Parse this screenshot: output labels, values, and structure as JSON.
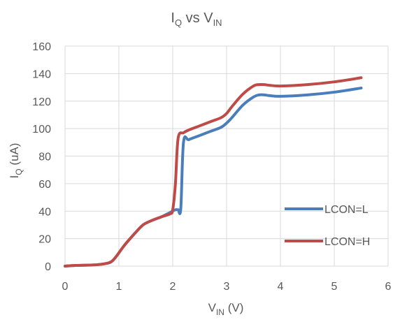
{
  "chart_data": {
    "type": "line",
    "title": {
      "main": "I",
      "sub1": "Q",
      "mid": " vs V",
      "sub2": "IN"
    },
    "xlabel": {
      "main": "V",
      "sub": "IN",
      "tail": " (V)"
    },
    "ylabel": {
      "main": "I",
      "sub": "Q",
      "tail": " (uA)"
    },
    "xlim": [
      0,
      6
    ],
    "ylim": [
      0,
      160
    ],
    "xticks": [
      0,
      1,
      2,
      3,
      4,
      5,
      6
    ],
    "yticks": [
      0,
      20,
      40,
      60,
      80,
      100,
      120,
      140,
      160
    ],
    "grid": true,
    "legend_position": "bottom-right",
    "series": [
      {
        "name": "LCON=L",
        "color": "#4a7ebb",
        "x": [
          0,
          0.2,
          0.5,
          0.7,
          0.85,
          0.95,
          1.1,
          1.3,
          1.45,
          1.6,
          1.8,
          1.95,
          2.05,
          2.1,
          2.15,
          2.2,
          2.3,
          2.5,
          2.7,
          2.9,
          3.0,
          3.1,
          3.3,
          3.5,
          3.6,
          3.7,
          3.8,
          4.0,
          4.5,
          5.0,
          5.5
        ],
        "y": [
          0,
          0.5,
          0.8,
          1.5,
          3,
          7,
          15,
          24,
          30,
          33,
          36,
          39,
          41,
          41,
          42,
          90,
          92,
          95,
          98,
          101,
          104,
          108,
          117,
          123,
          124.5,
          124.5,
          124,
          123.5,
          124.5,
          126.5,
          129.5
        ]
      },
      {
        "name": "LCON=H",
        "color": "#be4b48",
        "x": [
          0,
          0.2,
          0.5,
          0.7,
          0.85,
          0.95,
          1.1,
          1.3,
          1.45,
          1.6,
          1.8,
          1.95,
          2.0,
          2.05,
          2.1,
          2.2,
          2.3,
          2.5,
          2.7,
          2.9,
          3.0,
          3.1,
          3.3,
          3.5,
          3.6,
          3.7,
          3.8,
          4.0,
          4.5,
          5.0,
          5.5
        ],
        "y": [
          0,
          0.5,
          0.8,
          1.5,
          3,
          7,
          15,
          24,
          30,
          33,
          36,
          38,
          41,
          60,
          93,
          97,
          99,
          102,
          105,
          108,
          111,
          116,
          125,
          131,
          132,
          132,
          131.5,
          131,
          132,
          134,
          137
        ]
      }
    ]
  }
}
